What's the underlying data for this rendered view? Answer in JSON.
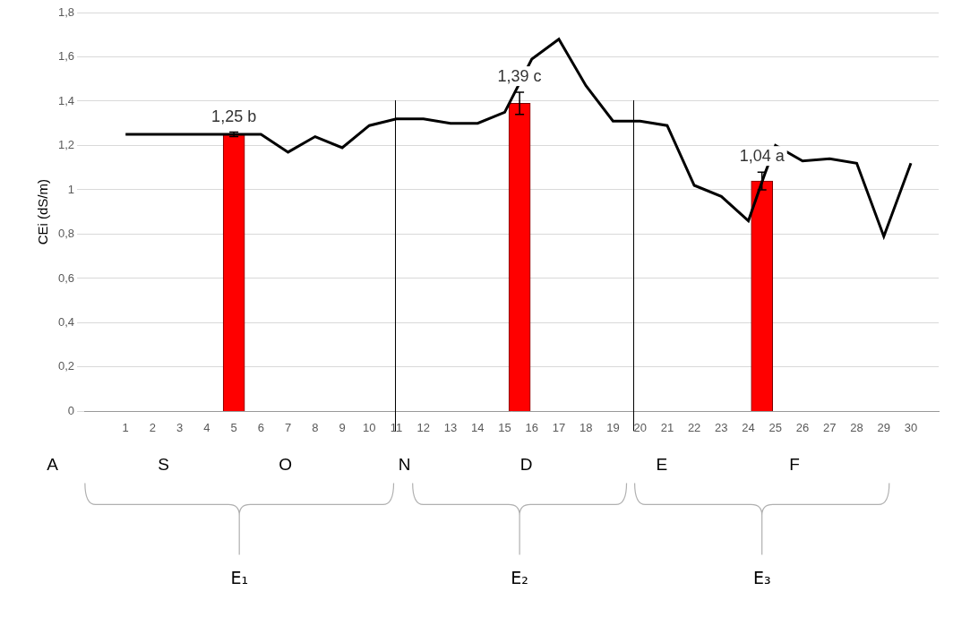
{
  "chart_data": {
    "type": "bar",
    "ylabel": "CEi (dS/m)",
    "xlim": [
      0,
      30.5
    ],
    "xticks": [
      1,
      2,
      3,
      4,
      5,
      6,
      7,
      8,
      9,
      10,
      11,
      12,
      13,
      14,
      15,
      16,
      17,
      18,
      19,
      20,
      21,
      22,
      23,
      24,
      25,
      26,
      27,
      28,
      29,
      30
    ],
    "ylim": [
      0,
      1.8
    ],
    "yticks": [
      0,
      {
        "value": 0.2,
        "label": "0,2"
      },
      {
        "value": 0.4,
        "label": "0,4"
      },
      {
        "value": 0.6,
        "label": "0,6"
      },
      {
        "value": 0.8,
        "label": "0,8"
      },
      1,
      {
        "value": 1.2,
        "label": "1,2"
      },
      {
        "value": 1.4,
        "label": "1,4"
      },
      {
        "value": 1.6,
        "label": "1,6"
      },
      {
        "value": 1.8,
        "label": "1,8"
      }
    ],
    "grid": "y",
    "series": [
      {
        "type": "line",
        "color": "#000000",
        "x": [
          1,
          2,
          3,
          4,
          5,
          6,
          7,
          8,
          9,
          10,
          11,
          12,
          13,
          14,
          15,
          16,
          17,
          18,
          19,
          20,
          21,
          22,
          23,
          24,
          24.6,
          25,
          26,
          27,
          28,
          29,
          30
        ],
        "values": [
          1.25,
          1.25,
          1.25,
          1.25,
          1.25,
          1.25,
          1.17,
          1.24,
          1.19,
          1.29,
          1.32,
          1.32,
          1.3,
          1.3,
          1.35,
          1.59,
          1.68,
          1.47,
          1.31,
          1.31,
          1.29,
          1.02,
          0.97,
          0.86,
          1.07,
          1.2,
          1.13,
          1.14,
          1.12,
          0.79,
          1.12
        ]
      },
      {
        "type": "bar",
        "color": "#ff0000",
        "data_labels": true,
        "x": [
          5,
          15.55,
          24.5
        ],
        "values": [
          1.25,
          1.39,
          1.04
        ],
        "value_labels": [
          "1,25 b",
          "1,39 c",
          "1,04 a"
        ],
        "errors": [
          0.01,
          0.05,
          0.04
        ]
      }
    ],
    "annotations": {
      "months": [
        {
          "x": -1.7,
          "label": "A"
        },
        {
          "x": 2.4,
          "label": "S"
        },
        {
          "x": 6.9,
          "label": "O"
        },
        {
          "x": 11.3,
          "label": "N"
        },
        {
          "x": 15.8,
          "label": "D"
        },
        {
          "x": 20.8,
          "label": "E"
        },
        {
          "x": 25.7,
          "label": "F"
        }
      ],
      "periods": [
        {
          "label": "E₁",
          "from": -0.5,
          "to": 10.9
        },
        {
          "label": "E₂",
          "from": 11.6,
          "to": 19.5
        },
        {
          "label": "E₃",
          "from": 19.8,
          "to": 29.2
        }
      ],
      "dividers": [
        10.95,
        19.75
      ]
    }
  }
}
